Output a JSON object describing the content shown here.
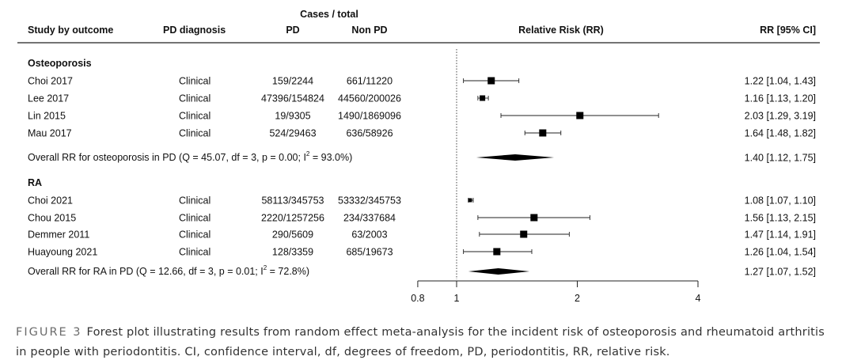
{
  "chart_data": {
    "type": "forest",
    "header": {
      "study": "Study by outcome",
      "diagnosis": "PD diagnosis",
      "cases_group": "Cases / total",
      "pd": "PD",
      "nonpd": "Non PD",
      "plot": "Relative Risk (RR)",
      "rr": "RR [95% CI]"
    },
    "xaxis": {
      "scale": "log",
      "xlim": [
        0.8,
        4
      ],
      "ticks": [
        "0.8",
        "1",
        "2",
        "4"
      ],
      "reference_line": 1
    },
    "groups": [
      {
        "label": "Osteoporosis",
        "studies": [
          {
            "name": "Choi 2017",
            "diagnosis": "Clinical",
            "pd": "159/2244",
            "nonpd": "661/11220",
            "rr": 1.22,
            "lo": 1.04,
            "hi": 1.43,
            "text": "1.22 [1.04, 1.43]"
          },
          {
            "name": "Lee 2017",
            "diagnosis": "Clinical",
            "pd": "47396/154824",
            "nonpd": "44560/200026",
            "rr": 1.16,
            "lo": 1.13,
            "hi": 1.2,
            "text": "1.16 [1.13, 1.20]"
          },
          {
            "name": "Lin 2015",
            "diagnosis": "Clinical",
            "pd": "19/9305",
            "nonpd": "1490/1869096",
            "rr": 2.03,
            "lo": 1.29,
            "hi": 3.19,
            "text": "2.03 [1.29, 3.19]"
          },
          {
            "name": "Mau 2017",
            "diagnosis": "Clinical",
            "pd": "524/29463",
            "nonpd": "636/58926",
            "rr": 1.64,
            "lo": 1.48,
            "hi": 1.82,
            "text": "1.64 [1.48, 1.82]"
          }
        ],
        "overall": {
          "label_prefix": "Overall RR for osteoporosis in PD (Q = 45.07, df = 3, p = 0.00; I",
          "sup": "2",
          "label_suffix": " = 93.0%)",
          "rr": 1.4,
          "lo": 1.12,
          "hi": 1.75,
          "text": "1.40 [1.12, 1.75]"
        }
      },
      {
        "label": "RA",
        "studies": [
          {
            "name": "Choi 2021",
            "diagnosis": "Clinical",
            "pd": "58113/345753",
            "nonpd": "53332/345753",
            "rr": 1.08,
            "lo": 1.07,
            "hi": 1.1,
            "text": "1.08 [1.07, 1.10]"
          },
          {
            "name": "Chou 2015",
            "diagnosis": "Clinical",
            "pd": "2220/1257256",
            "nonpd": "234/337684",
            "rr": 1.56,
            "lo": 1.13,
            "hi": 2.15,
            "text": "1.56 [1.13, 2.15]"
          },
          {
            "name": "Demmer 2011",
            "diagnosis": "Clinical",
            "pd": "290/5609",
            "nonpd": "63/2003",
            "rr": 1.47,
            "lo": 1.14,
            "hi": 1.91,
            "text": "1.47 [1.14, 1.91]"
          },
          {
            "name": "Huayoung 2021",
            "diagnosis": "Clinical",
            "pd": "128/3359",
            "nonpd": "685/19673",
            "rr": 1.26,
            "lo": 1.04,
            "hi": 1.54,
            "text": "1.26 [1.04, 1.54]"
          }
        ],
        "overall": {
          "label_prefix": "Overall RR for RA in PD (Q = 12.66, df = 3, p = 0.01; I",
          "sup": "2",
          "label_suffix": " = 72.8%)",
          "rr": 1.27,
          "lo": 1.07,
          "hi": 1.52,
          "text": "1.27 [1.07, 1.52]"
        }
      }
    ]
  },
  "caption": {
    "figure_label": "FIGURE 3",
    "text": "Forest plot illustrating results from random effect meta-analysis for the incident risk of osteoporosis and rheumatoid arthritis in people with periodontitis. CI, confidence interval, df, degrees of freedom, PD, periodontitis, RR, relative risk."
  }
}
